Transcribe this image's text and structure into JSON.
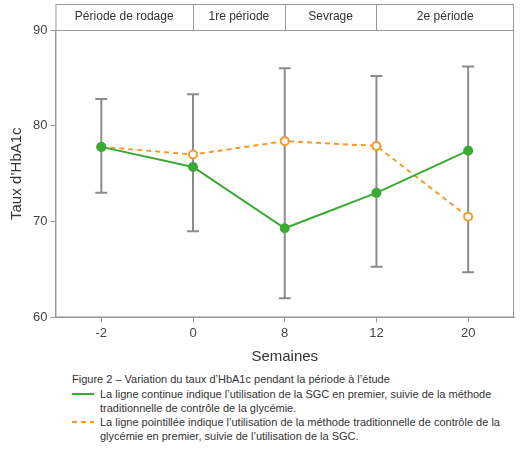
{
  "chart_data": {
    "type": "line",
    "title": "Figure 2 – Variation du taux d’HbA1c pendant la période à l’étude",
    "x_label": "Semaines",
    "y_label": "Taux d’HbA1c",
    "categories": [
      "-2",
      "0",
      "8",
      "12",
      "20"
    ],
    "series": [
      {
        "name": "La ligne continue indique l’utilisation de la SGC en premier, suivie de la méthode traditionnelle de contrôle de la glycémie.",
        "color": "#3aaa35",
        "line_style": "solid",
        "marker": "circle",
        "values": [
          77.8,
          75.7,
          69.3,
          73.0,
          77.4
        ]
      },
      {
        "name": "La ligne pointillée indique l’utilisation de la méthode traditionnelle de contrôle de la glycémie en premier, suivie de l’utilisation de la SGC.",
        "color": "#f39a2b",
        "line_style": "dashed",
        "marker": "circle_open",
        "values": [
          77.8,
          77.0,
          78.4,
          77.9,
          70.5
        ]
      }
    ],
    "error_bars": {
      "color": "#8c8c8c",
      "low": [
        73.0,
        69.0,
        62.0,
        65.3,
        64.7
      ],
      "high": [
        82.8,
        83.3,
        86.0,
        85.2,
        86.2
      ]
    },
    "periods": [
      {
        "label": "Période de rodage",
        "start": "-2",
        "end": "0"
      },
      {
        "label": "1re période",
        "start": "0",
        "end": "8"
      },
      {
        "label": "Sevrage",
        "start": "8",
        "end": "12"
      },
      {
        "label": "2e période",
        "start": "12",
        "end": "20"
      }
    ],
    "ylim": [
      60,
      90
    ],
    "yticks": [
      60,
      70,
      80,
      90
    ],
    "grid": false,
    "legend": "bottom"
  }
}
